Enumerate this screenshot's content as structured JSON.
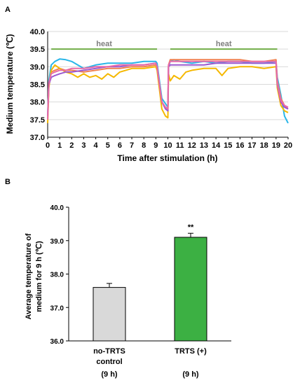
{
  "chart_data": [
    {
      "panel_label": "A",
      "type": "line",
      "xlabel": "Time after stimulation (h)",
      "ylabel": "Medium temperature (℃)",
      "xlim": [
        0,
        20
      ],
      "ylim": [
        37.0,
        40.0
      ],
      "x_ticks": [
        "0",
        "1",
        "2",
        "3",
        "4",
        "5",
        "6",
        "7",
        "8",
        "9",
        "10",
        "11",
        "12",
        "13",
        "14",
        "15",
        "16",
        "17",
        "18",
        "19",
        "20"
      ],
      "y_ticks": [
        "37.0",
        "37.5",
        "38.0",
        "38.5",
        "39.0",
        "39.5",
        "40.0"
      ],
      "grid": "horizontal",
      "annotations": [
        {
          "text": "heat",
          "x_start": 0.3,
          "x_end": 9.1,
          "y": 39.5
        },
        {
          "text": "heat",
          "x_start": 10.2,
          "x_end": 19.1,
          "y": 39.5
        }
      ],
      "series": [
        {
          "color": "#29b6e8",
          "x": [
            0,
            0.1,
            0.3,
            0.6,
            1,
            1.5,
            2,
            3,
            4,
            5,
            6,
            7,
            8,
            9,
            9.1,
            9.5,
            9.8,
            10,
            10.05,
            10.2,
            10.5,
            11,
            12,
            13,
            14,
            15,
            16,
            17,
            18,
            19,
            19.1,
            19.4,
            19.7,
            20
          ],
          "y": [
            37.6,
            38.6,
            39.05,
            39.15,
            39.22,
            39.2,
            39.15,
            38.95,
            39.05,
            39.1,
            39.1,
            39.1,
            39.15,
            39.15,
            39.1,
            38.1,
            37.95,
            37.85,
            39.0,
            39.15,
            39.2,
            39.15,
            39.1,
            39.15,
            39.1,
            39.15,
            39.15,
            39.1,
            39.1,
            39.15,
            38.7,
            38.2,
            37.6,
            37.4
          ]
        },
        {
          "color": "#f08050",
          "x": [
            0,
            0.1,
            0.3,
            0.6,
            1,
            1.5,
            2,
            3,
            4,
            5,
            6,
            7,
            8,
            9,
            9.1,
            9.5,
            9.8,
            10,
            10.05,
            10.2,
            10.5,
            11,
            12,
            13,
            14,
            15,
            16,
            17,
            18,
            19,
            19.1,
            19.4,
            19.7,
            20
          ],
          "y": [
            37.5,
            38.5,
            38.85,
            38.9,
            38.95,
            38.9,
            38.9,
            38.85,
            38.9,
            38.95,
            38.95,
            39.0,
            39.0,
            39.05,
            39.0,
            38.0,
            37.85,
            37.8,
            39.05,
            39.2,
            39.2,
            39.2,
            39.2,
            39.2,
            39.2,
            39.2,
            39.2,
            39.15,
            39.15,
            39.2,
            38.6,
            38.1,
            37.9,
            37.8
          ]
        },
        {
          "color": "#f5b800",
          "x": [
            0,
            0.1,
            0.3,
            0.6,
            1,
            1.5,
            2,
            2.5,
            3,
            3.5,
            4,
            4.5,
            5,
            5.5,
            6,
            6.5,
            7,
            8,
            9,
            9.1,
            9.5,
            9.8,
            10,
            10.05,
            10.2,
            10.5,
            11,
            11.5,
            12,
            13,
            14,
            14.5,
            15,
            16,
            17,
            18,
            19,
            19.1,
            19.4,
            19.7,
            20
          ],
          "y": [
            37.4,
            38.4,
            38.9,
            39.05,
            38.95,
            38.85,
            38.8,
            38.7,
            38.8,
            38.7,
            38.75,
            38.65,
            38.8,
            38.7,
            38.85,
            38.9,
            38.95,
            38.95,
            39.0,
            38.9,
            37.8,
            37.6,
            37.55,
            38.8,
            38.6,
            38.75,
            38.65,
            38.85,
            38.9,
            38.95,
            38.95,
            38.75,
            38.95,
            39.0,
            39.0,
            38.95,
            39.0,
            38.4,
            37.9,
            37.75,
            37.7
          ]
        },
        {
          "color": "#9b59d0",
          "x": [
            0,
            0.1,
            0.3,
            0.6,
            1,
            1.5,
            2,
            3,
            4,
            5,
            6,
            7,
            8,
            9,
            9.1,
            9.5,
            9.8,
            10,
            10.05,
            10.2,
            10.5,
            11,
            12,
            13,
            14,
            15,
            16,
            17,
            18,
            19,
            19.1,
            19.4,
            19.7,
            20
          ],
          "y": [
            37.6,
            38.5,
            38.7,
            38.75,
            38.8,
            38.85,
            38.85,
            38.9,
            38.95,
            39.0,
            39.0,
            39.05,
            39.05,
            39.1,
            39.0,
            38.0,
            37.8,
            37.75,
            39.0,
            39.05,
            39.05,
            39.05,
            39.05,
            39.05,
            39.1,
            39.1,
            39.1,
            39.1,
            39.1,
            39.1,
            38.5,
            38.0,
            37.85,
            37.8
          ]
        },
        {
          "color": "#e86aa8",
          "x": [
            0,
            0.1,
            0.3,
            0.6,
            1,
            1.5,
            2,
            3,
            4,
            5,
            6,
            7,
            8,
            9,
            9.1,
            9.5,
            9.8,
            10,
            10.05,
            10.2,
            10.5,
            11,
            12,
            13,
            14,
            15,
            16,
            17,
            18,
            19,
            19.1,
            19.4,
            19.7,
            20
          ],
          "y": [
            37.5,
            38.55,
            38.8,
            38.85,
            38.9,
            38.9,
            38.95,
            38.95,
            39.0,
            39.0,
            39.05,
            39.05,
            39.05,
            39.1,
            39.0,
            38.0,
            37.85,
            37.8,
            39.05,
            39.15,
            39.15,
            39.15,
            39.15,
            39.15,
            39.15,
            39.15,
            39.15,
            39.15,
            39.15,
            39.15,
            38.55,
            38.05,
            37.9,
            37.85
          ]
        }
      ]
    },
    {
      "panel_label": "B",
      "type": "bar",
      "ylabel_lines": [
        "Average  temperature of",
        "medium for 9 h (℃)"
      ],
      "ylim": [
        36.0,
        40.0
      ],
      "y_ticks": [
        "36.0",
        "37.0",
        "38.0",
        "39.0",
        "40.0"
      ],
      "categories": [
        [
          "no-TRTS",
          "control",
          "(9 h)"
        ],
        [
          "TRTS (+)",
          "",
          "(9 h)"
        ]
      ],
      "values": [
        37.6,
        39.1
      ],
      "errors": [
        0.12,
        0.12
      ],
      "bar_colors": [
        "#d9d9d9",
        "#3cb043"
      ],
      "significance": [
        "",
        "**"
      ]
    }
  ]
}
